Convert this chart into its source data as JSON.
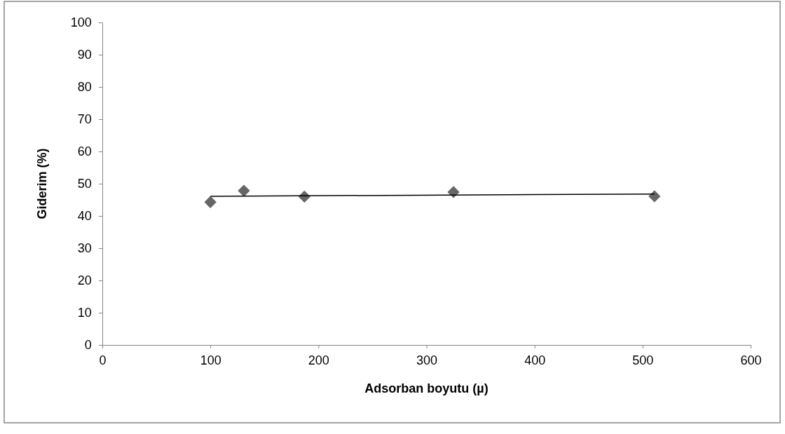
{
  "chart_data": {
    "type": "scatter",
    "xlabel": "Adsorban boyutu (µ)",
    "ylabel": "Giderim (%)",
    "xlim": [
      0,
      600
    ],
    "xticks": [
      0,
      100,
      200,
      300,
      400,
      500,
      600
    ],
    "ylim": [
      0,
      100
    ],
    "yticks": [
      0,
      10,
      20,
      30,
      40,
      50,
      60,
      70,
      80,
      90,
      100
    ],
    "grid": false,
    "series": [
      {
        "color": "#666666",
        "marker": "diamond",
        "x": [
          100,
          131,
          187,
          325,
          511
        ],
        "values": [
          44.3,
          47.8,
          46,
          47.4,
          46.1
        ]
      },
      {
        "type": "line",
        "color": "#000000",
        "marker": "none",
        "line_style": "solid",
        "x": [
          100,
          511
        ],
        "values": [
          46.1,
          46.8
        ]
      }
    ]
  }
}
